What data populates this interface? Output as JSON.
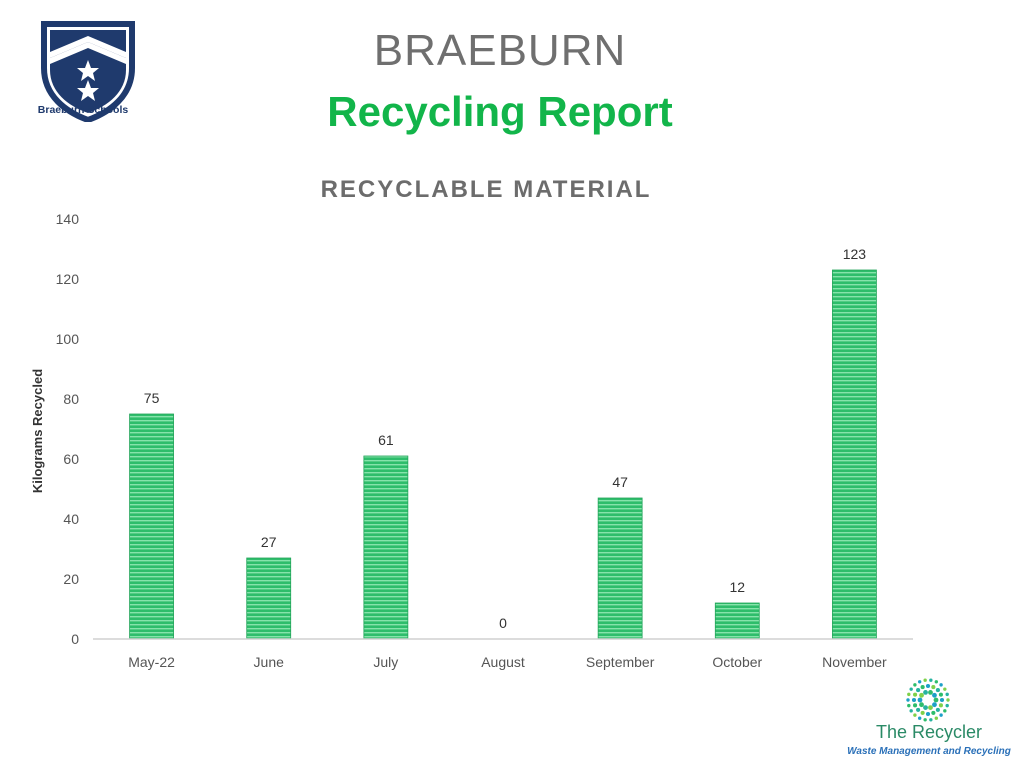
{
  "header": {
    "school_logo_caption": "Braeburn Schools",
    "brand_title": "BRAEBURN",
    "report_title": "Recycling Report"
  },
  "footer": {
    "recycler_name": "The Recycler",
    "recycler_tagline": "Waste Management and Recycling"
  },
  "colors": {
    "bar": "#2ebd6b",
    "bar_stripe": "#7fe0a5",
    "report_title": "#12b54a",
    "shield_blue": "#1f3a6d"
  },
  "chart_data": {
    "type": "bar",
    "title": "RECYCLABLE MATERIAL",
    "xlabel": "",
    "ylabel": "Kilograms Recycled",
    "categories": [
      "May-22",
      "June",
      "July",
      "August",
      "September",
      "October",
      "November"
    ],
    "values": [
      75,
      27,
      61,
      0,
      47,
      12,
      123
    ],
    "ylim": [
      0,
      140
    ],
    "yticks": [
      0,
      20,
      40,
      60,
      80,
      100,
      120,
      140
    ],
    "data_labels": true,
    "grid": false,
    "legend": "none"
  }
}
